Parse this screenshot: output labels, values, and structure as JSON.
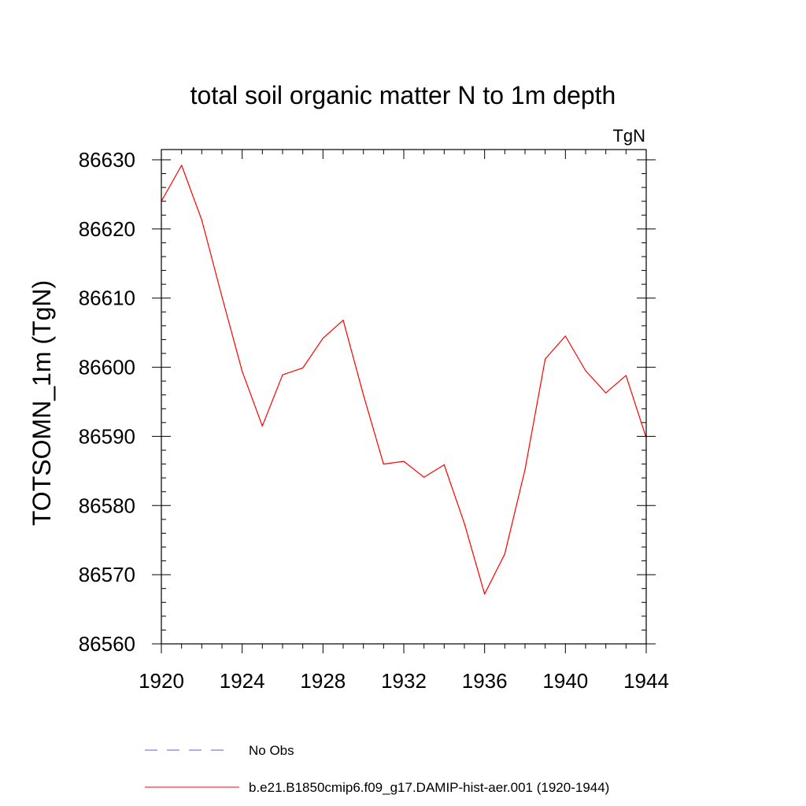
{
  "chart_data": {
    "type": "line",
    "title": "total soil organic matter N to 1m depth",
    "units_label": "TgN",
    "ylabel": "TOTSOMN_1m  (TgN)",
    "xlabel": "",
    "xlim": [
      1920,
      1944
    ],
    "ylim": [
      86560,
      86630
    ],
    "x_ticks": [
      1920,
      1924,
      1928,
      1932,
      1936,
      1940,
      1944
    ],
    "y_ticks": [
      86560,
      86570,
      86580,
      86590,
      86600,
      86610,
      86620,
      86630
    ],
    "grid": false,
    "legend_position": "bottom-left",
    "series": [
      {
        "name": "b.e21.B1850cmip6.f09_g17.DAMIP-hist-aer.001 (1920-1944)",
        "color": "#ff0000",
        "style": "solid",
        "x": [
          1920,
          1921,
          1922,
          1923,
          1924,
          1925,
          1926,
          1927,
          1928,
          1929,
          1930,
          1931,
          1932,
          1933,
          1934,
          1935,
          1936,
          1937,
          1938,
          1939,
          1940,
          1941,
          1942,
          1943,
          1944
        ],
        "y": [
          86624,
          86629.2,
          86621.3,
          86610.2,
          86599.4,
          86591.5,
          86598.9,
          86599.9,
          86604.2,
          86606.8,
          86596,
          86586,
          86586.4,
          86584.1,
          86585.9,
          86577.4,
          86567.2,
          86573,
          86585.2,
          86601.2,
          86604.5,
          86599.5,
          86596.3,
          86598.8,
          86589.8
        ]
      }
    ],
    "legend": [
      {
        "label": "No Obs",
        "color": "#6a5acd",
        "style": "dashed"
      },
      {
        "label": "b.e21.B1850cmip6.f09_g17.DAMIP-hist-aer.001 (1920-1944)",
        "color": "#ff0000",
        "style": "solid"
      }
    ]
  }
}
